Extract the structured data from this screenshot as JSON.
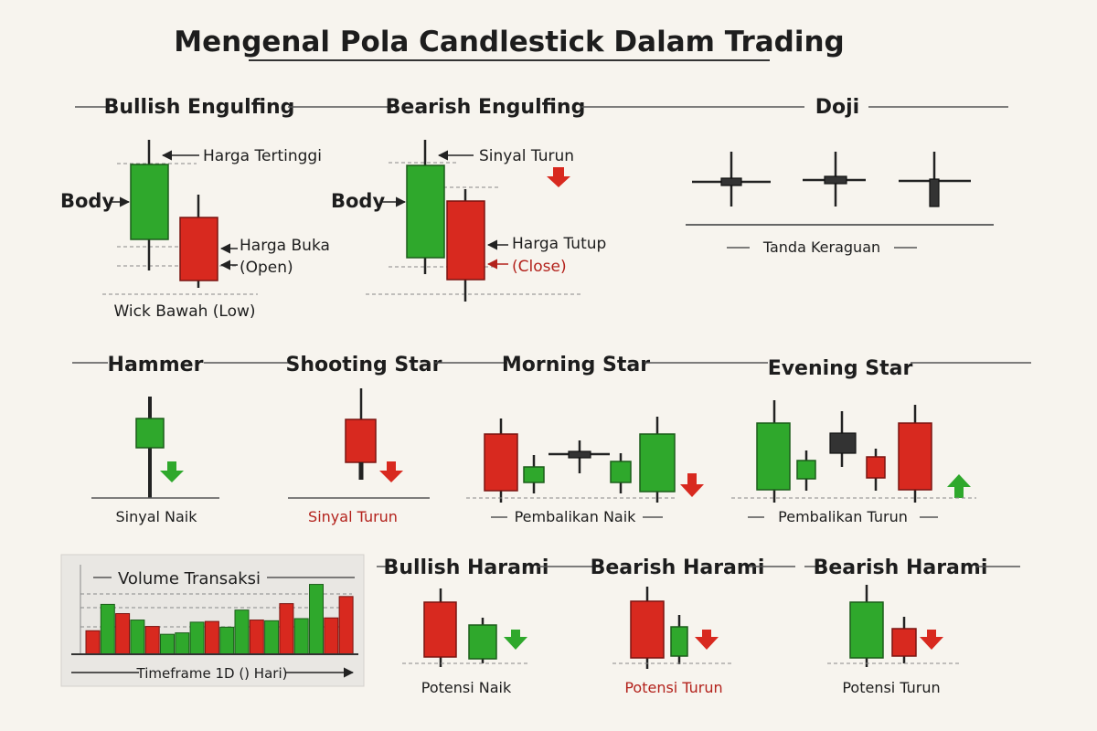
{
  "title": "Mengenal Pola Candlestick Dalam Trading",
  "colors": {
    "bullish": "#2fa82c",
    "bearish": "#d8291f",
    "neutral": "#333333",
    "accent_text": "#b3221c",
    "background": "#f7f4ee"
  },
  "bullish_engulfing": {
    "title": "Bullish Engulfing",
    "label_high": "Harga Tertinggi",
    "label_body": "Body",
    "label_open": "Harga Buka",
    "label_open_en": "(Open)",
    "label_low": "Wick Bawah (Low)"
  },
  "bearish_engulfing": {
    "title": "Bearish Engulfing",
    "label_signal": "Sinyal Turun",
    "label_body": "Body",
    "label_close": "Harga Tutup",
    "label_close_en": "(Close)"
  },
  "doji": {
    "title": "Doji",
    "caption": "Tanda Keraguan"
  },
  "hammer": {
    "title": "Hammer",
    "caption": "Sinyal Naik"
  },
  "shooting_star": {
    "title": "Shooting Star",
    "caption": "Sinyal Turun"
  },
  "morning_star": {
    "title": "Morning Star",
    "caption": "Pembalikan Naik"
  },
  "evening_star": {
    "title": "Evening Star",
    "caption": "Pembalikan Turun"
  },
  "volume": {
    "title": "Volume Transaksi",
    "timeframe": "Timeframe 1D () Hari)",
    "bars": [
      {
        "v": 0.33,
        "c": "bear"
      },
      {
        "v": 0.7,
        "c": "bull"
      },
      {
        "v": 0.57,
        "c": "bear"
      },
      {
        "v": 0.48,
        "c": "bull"
      },
      {
        "v": 0.39,
        "c": "bear"
      },
      {
        "v": 0.28,
        "c": "bull"
      },
      {
        "v": 0.3,
        "c": "bull"
      },
      {
        "v": 0.45,
        "c": "bull"
      },
      {
        "v": 0.46,
        "c": "bear"
      },
      {
        "v": 0.38,
        "c": "bull"
      },
      {
        "v": 0.62,
        "c": "bull"
      },
      {
        "v": 0.48,
        "c": "bear"
      },
      {
        "v": 0.47,
        "c": "bull"
      },
      {
        "v": 0.71,
        "c": "bear"
      },
      {
        "v": 0.5,
        "c": "bull"
      },
      {
        "v": 0.98,
        "c": "bull"
      },
      {
        "v": 0.51,
        "c": "bear"
      },
      {
        "v": 0.81,
        "c": "bear"
      }
    ]
  },
  "bullish_harami": {
    "title": "Bullish Harami",
    "caption": "Potensi Naik"
  },
  "bearish_harami_1": {
    "title": "Bearish Harami",
    "caption": "Potensi Turun"
  },
  "bearish_harami_2": {
    "title": "Bearish Harami",
    "caption": "Potensi Turun"
  }
}
